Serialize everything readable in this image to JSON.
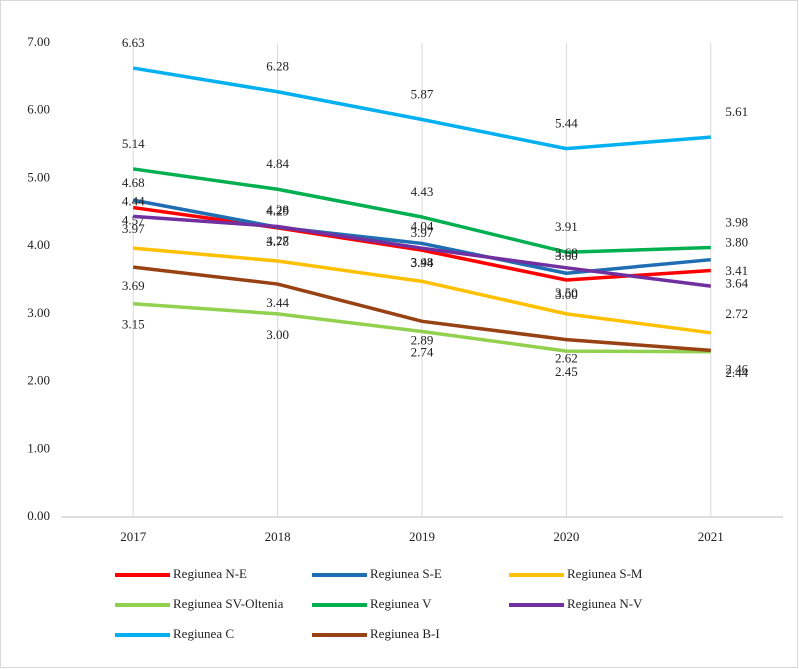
{
  "chart_data": {
    "type": "line",
    "categories": [
      "2017",
      "2018",
      "2019",
      "2020",
      "2021"
    ],
    "ylim": [
      0,
      7
    ],
    "yticks": [
      {
        "value": 0,
        "label": "0.00"
      },
      {
        "value": 1,
        "label": "1.00"
      },
      {
        "value": 2,
        "label": "2.00"
      },
      {
        "value": 3,
        "label": "3.00"
      },
      {
        "value": 4,
        "label": "4.00"
      },
      {
        "value": 5,
        "label": "5.00"
      },
      {
        "value": 6,
        "label": "6.00"
      },
      {
        "value": 7,
        "label": "7.00"
      }
    ],
    "grid": "x",
    "legend": "bottom",
    "series": [
      {
        "name": "Regiunea N-E",
        "color": "#ff0000",
        "values": [
          4.57,
          4.27,
          3.94,
          3.5,
          3.64
        ],
        "value_labels": [
          "4.57",
          "4.27",
          "3.94",
          "3.50",
          "3.64"
        ]
      },
      {
        "name": "Regiunea S-E",
        "color": "#1f6eb3",
        "values": [
          4.68,
          4.28,
          4.04,
          3.6,
          3.8
        ],
        "value_labels": [
          "4.68",
          "4.28",
          "4.04",
          "3.60",
          "3.80"
        ]
      },
      {
        "name": "Regiunea S-M",
        "color": "#ffc000",
        "values": [
          3.97,
          3.78,
          3.48,
          3.0,
          2.72
        ],
        "value_labels": [
          "3.97",
          "3.78",
          "3.48",
          "3.00",
          "2.72"
        ]
      },
      {
        "name": "Regiunea SV-Oltenia",
        "color": "#92d050",
        "values": [
          3.15,
          3.0,
          2.74,
          2.45,
          2.44
        ],
        "value_labels": [
          "3.15",
          "3.00",
          "2.74",
          "2.45",
          "2.44"
        ]
      },
      {
        "name": "Regiunea V",
        "color": "#00b050",
        "values": [
          5.14,
          4.84,
          4.43,
          3.91,
          3.98
        ],
        "value_labels": [
          "5.14",
          "4.84",
          "4.43",
          "3.91",
          "3.98"
        ]
      },
      {
        "name": "Regiunea N-V",
        "color": "#7030a0",
        "values": [
          4.44,
          4.29,
          3.97,
          3.68,
          3.41
        ],
        "value_labels": [
          "4.44",
          "4.29",
          "3.97",
          "3.68",
          "3.41"
        ]
      },
      {
        "name": "Regiunea C",
        "color": "#00b0f0",
        "values": [
          6.63,
          6.28,
          5.87,
          5.44,
          5.61
        ],
        "value_labels": [
          "6.63",
          "6.28",
          "5.87",
          "5.44",
          "5.61"
        ]
      },
      {
        "name": "Regiunea B-I",
        "color": "#984214",
        "values": [
          3.69,
          3.44,
          2.89,
          2.62,
          2.46
        ],
        "value_labels": [
          "3.69",
          "3.44",
          "2.89",
          "2.62",
          "2.46"
        ]
      }
    ]
  }
}
